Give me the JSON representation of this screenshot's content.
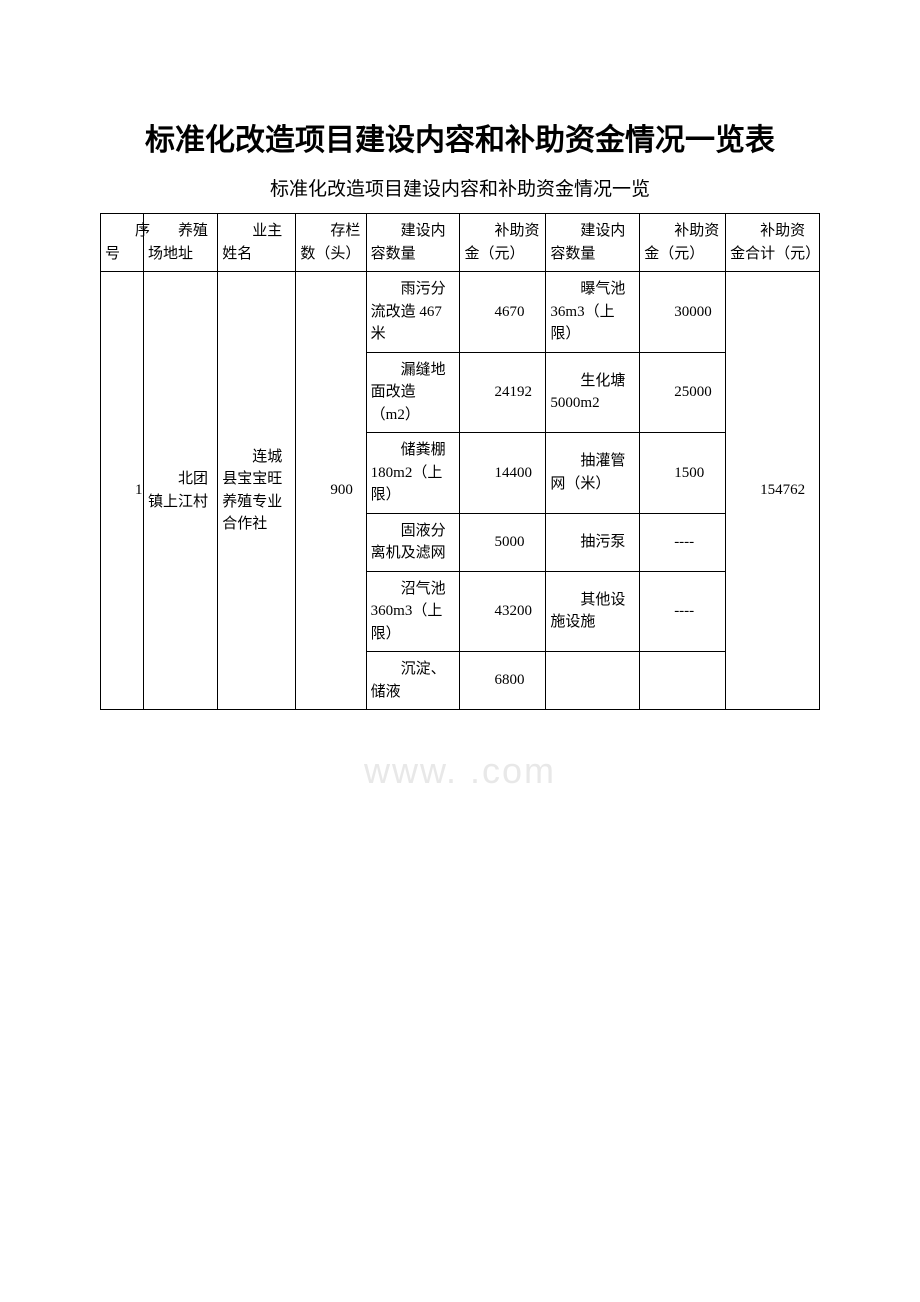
{
  "title": "标准化改造项目建设内容和补助资金情况一览表",
  "subtitle": "标准化改造项目建设内容和补助资金情况一览",
  "watermark": "www.        .com",
  "headers": {
    "seq": "序号",
    "addr": "养殖场地址",
    "owner": "业主姓名",
    "count": "存栏数（头）",
    "content1": "建设内容数量",
    "fund1": "补助资金（元）",
    "content2": "建设内容数量",
    "fund2": "补助资金（元）",
    "total": "补助资金合计（元）"
  },
  "row": {
    "seq": "1",
    "addr": "北团镇上江村",
    "owner": "连城县宝宝旺养殖专业合作社",
    "count": "900",
    "total": "154762",
    "items": [
      {
        "content1": "雨污分流改造 467米",
        "fund1": "4670",
        "content2": "曝气池36m3（上限）",
        "fund2": "30000"
      },
      {
        "content1": "漏缝地面改造（m2）",
        "fund1": "24192",
        "content2": "生化塘5000m2",
        "fund2": "25000"
      },
      {
        "content1": "储粪棚180m2（上限）",
        "fund1": "14400",
        "content2": "抽灌管网（米）",
        "fund2": "1500"
      },
      {
        "content1": "固液分离机及滤网",
        "fund1": "5000",
        "content2": "抽污泵",
        "fund2": "----"
      },
      {
        "content1": "沼气池360m3（上限）",
        "fund1": "43200",
        "content2": "其他设施设施",
        "fund2": "----"
      },
      {
        "content1": "沉淀、储液",
        "fund1": "6800",
        "content2": "",
        "fund2": ""
      }
    ]
  }
}
